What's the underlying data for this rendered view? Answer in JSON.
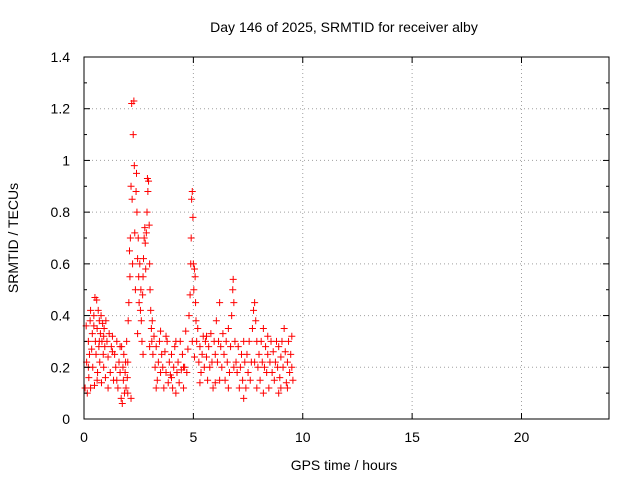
{
  "chart_data": {
    "type": "scatter",
    "title": "Day 146 of 2025, SRMTID for receiver alby",
    "xlabel": "GPS time / hours",
    "ylabel": "SRMTID / TECUs",
    "xlim": [
      0,
      24
    ],
    "ylim": [
      0,
      1.4
    ],
    "x_ticks": [
      0,
      5,
      10,
      15,
      20
    ],
    "x_tick_labels": [
      "0",
      "5",
      "10",
      "15",
      "20"
    ],
    "y_ticks": [
      0,
      0.2,
      0.4,
      0.6,
      0.8,
      1.0,
      1.2,
      1.4
    ],
    "y_tick_labels": [
      "0",
      "0.2",
      "0.4",
      "0.6",
      "0.8",
      "1",
      "1.2",
      "1.4"
    ],
    "grid": true,
    "marker": "+",
    "colors": {
      "series": "#ff0000",
      "grid": "#a0a0a0",
      "axis": "#000000"
    },
    "series": [
      {
        "name": "SRMTID",
        "points": [
          [
            0.05,
            0.12
          ],
          [
            0.1,
            0.36
          ],
          [
            0.12,
            0.22
          ],
          [
            0.15,
            0.1
          ],
          [
            0.2,
            0.3
          ],
          [
            0.22,
            0.16
          ],
          [
            0.25,
            0.25
          ],
          [
            0.28,
            0.38
          ],
          [
            0.3,
            0.12
          ],
          [
            0.35,
            0.27
          ],
          [
            0.38,
            0.33
          ],
          [
            0.4,
            0.2
          ],
          [
            0.45,
            0.36
          ],
          [
            0.48,
            0.13
          ],
          [
            0.5,
            0.47
          ],
          [
            0.52,
            0.3
          ],
          [
            0.55,
            0.25
          ],
          [
            0.58,
            0.46
          ],
          [
            0.6,
            0.35
          ],
          [
            0.62,
            0.18
          ],
          [
            0.65,
            0.42
          ],
          [
            0.68,
            0.28
          ],
          [
            0.7,
            0.38
          ],
          [
            0.72,
            0.22
          ],
          [
            0.75,
            0.33
          ],
          [
            0.78,
            0.4
          ],
          [
            0.8,
            0.14
          ],
          [
            0.82,
            0.3
          ],
          [
            0.85,
            0.37
          ],
          [
            0.88,
            0.25
          ],
          [
            0.9,
            0.2
          ],
          [
            0.92,
            0.35
          ],
          [
            0.95,
            0.28
          ],
          [
            0.98,
            0.16
          ],
          [
            1.0,
            0.38
          ],
          [
            1.05,
            0.3
          ],
          [
            1.1,
            0.24
          ],
          [
            1.15,
            0.33
          ],
          [
            1.2,
            0.18
          ],
          [
            1.25,
            0.28
          ],
          [
            1.3,
            0.32
          ],
          [
            1.35,
            0.15
          ],
          [
            1.4,
            0.25
          ],
          [
            1.45,
            0.2
          ],
          [
            1.5,
            0.3
          ],
          [
            1.55,
            0.12
          ],
          [
            1.6,
            0.22
          ],
          [
            1.65,
            0.18
          ],
          [
            1.7,
            0.08
          ],
          [
            1.72,
            0.28
          ],
          [
            1.75,
            0.06
          ],
          [
            1.78,
            0.2
          ],
          [
            1.8,
            0.15
          ],
          [
            1.82,
            0.25
          ],
          [
            1.85,
            0.1
          ],
          [
            1.88,
            0.18
          ],
          [
            1.9,
            0.22
          ],
          [
            1.92,
            0.12
          ],
          [
            1.95,
            0.3
          ],
          [
            1.98,
            0.16
          ],
          [
            2.0,
            0.22
          ],
          [
            2.02,
            0.38
          ],
          [
            2.05,
            0.45
          ],
          [
            2.08,
            0.65
          ],
          [
            2.1,
            0.55
          ],
          [
            2.12,
            0.7
          ],
          [
            2.15,
            0.9
          ],
          [
            2.18,
            1.22
          ],
          [
            2.2,
            0.85
          ],
          [
            2.22,
            0.6
          ],
          [
            2.25,
            1.1
          ],
          [
            2.28,
            1.23
          ],
          [
            2.3,
            0.98
          ],
          [
            2.32,
            0.72
          ],
          [
            2.35,
            0.5
          ],
          [
            2.38,
            0.88
          ],
          [
            2.4,
            0.95
          ],
          [
            2.42,
            0.8
          ],
          [
            2.45,
            0.62
          ],
          [
            2.48,
            0.7
          ],
          [
            2.5,
            0.55
          ],
          [
            2.52,
            0.45
          ],
          [
            2.55,
            0.6
          ],
          [
            2.58,
            0.42
          ],
          [
            2.6,
            0.5
          ],
          [
            2.62,
            0.38
          ],
          [
            2.65,
            0.3
          ],
          [
            2.68,
            0.48
          ],
          [
            2.7,
            0.55
          ],
          [
            2.72,
            0.62
          ],
          [
            2.75,
            0.7
          ],
          [
            2.78,
            0.74
          ],
          [
            2.8,
            0.68
          ],
          [
            2.82,
            0.58
          ],
          [
            2.85,
            0.72
          ],
          [
            2.88,
            0.8
          ],
          [
            2.9,
            0.93
          ],
          [
            2.92,
            0.88
          ],
          [
            2.95,
            0.92
          ],
          [
            2.98,
            0.75
          ],
          [
            3.0,
            0.6
          ],
          [
            3.02,
            0.5
          ],
          [
            3.05,
            0.42
          ],
          [
            3.08,
            0.35
          ],
          [
            3.1,
            0.3
          ],
          [
            3.12,
            0.38
          ],
          [
            3.15,
            0.25
          ],
          [
            3.2,
            0.32
          ],
          [
            3.25,
            0.2
          ],
          [
            3.3,
            0.28
          ],
          [
            3.35,
            0.15
          ],
          [
            3.4,
            0.22
          ],
          [
            3.45,
            0.3
          ],
          [
            3.5,
            0.18
          ],
          [
            3.55,
            0.25
          ],
          [
            3.6,
            0.2
          ],
          [
            3.65,
            0.12
          ],
          [
            3.7,
            0.26
          ],
          [
            3.75,
            0.18
          ],
          [
            3.8,
            0.3
          ],
          [
            3.85,
            0.14
          ],
          [
            3.9,
            0.22
          ],
          [
            3.95,
            0.17
          ],
          [
            4.0,
            0.25
          ],
          [
            4.05,
            0.12
          ],
          [
            4.1,
            0.2
          ],
          [
            4.15,
            0.28
          ],
          [
            4.2,
            0.1
          ],
          [
            4.25,
            0.18
          ],
          [
            4.3,
            0.22
          ],
          [
            4.35,
            0.14
          ],
          [
            4.4,
            0.3
          ],
          [
            4.45,
            0.19
          ],
          [
            4.5,
            0.25
          ],
          [
            4.55,
            0.12
          ],
          [
            4.6,
            0.2
          ],
          [
            4.65,
            0.34
          ],
          [
            4.7,
            0.18
          ],
          [
            4.75,
            0.27
          ],
          [
            4.8,
            0.4
          ],
          [
            4.85,
            0.48
          ],
          [
            4.88,
            0.6
          ],
          [
            4.9,
            0.7
          ],
          [
            4.92,
            0.85
          ],
          [
            4.95,
            0.88
          ],
          [
            4.98,
            0.78
          ],
          [
            5.0,
            0.6
          ],
          [
            5.02,
            0.5
          ],
          [
            5.05,
            0.58
          ],
          [
            5.08,
            0.55
          ],
          [
            5.1,
            0.45
          ],
          [
            5.12,
            0.38
          ],
          [
            5.15,
            0.3
          ],
          [
            5.2,
            0.35
          ],
          [
            5.25,
            0.22
          ],
          [
            5.3,
            0.28
          ],
          [
            5.35,
            0.18
          ],
          [
            5.4,
            0.25
          ],
          [
            5.45,
            0.32
          ],
          [
            5.5,
            0.2
          ],
          [
            5.55,
            0.3
          ],
          [
            5.6,
            0.24
          ],
          [
            5.65,
            0.15
          ],
          [
            5.7,
            0.28
          ],
          [
            5.75,
            0.2
          ],
          [
            5.8,
            0.33
          ],
          [
            5.85,
            0.22
          ],
          [
            5.9,
            0.12
          ],
          [
            5.95,
            0.3
          ],
          [
            6.0,
            0.25
          ],
          [
            6.05,
            0.38
          ],
          [
            6.1,
            0.22
          ],
          [
            6.15,
            0.3
          ],
          [
            6.2,
            0.45
          ],
          [
            6.25,
            0.28
          ],
          [
            6.3,
            0.2
          ],
          [
            6.35,
            0.33
          ],
          [
            6.4,
            0.25
          ],
          [
            6.45,
            0.15
          ],
          [
            6.5,
            0.3
          ],
          [
            6.55,
            0.22
          ],
          [
            6.6,
            0.35
          ],
          [
            6.65,
            0.18
          ],
          [
            6.7,
            0.28
          ],
          [
            6.75,
            0.4
          ],
          [
            6.8,
            0.5
          ],
          [
            6.82,
            0.54
          ],
          [
            6.85,
            0.45
          ],
          [
            6.9,
            0.3
          ],
          [
            6.95,
            0.22
          ],
          [
            7.0,
            0.18
          ],
          [
            7.05,
            0.28
          ],
          [
            7.1,
            0.12
          ],
          [
            7.15,
            0.2
          ],
          [
            7.2,
            0.25
          ],
          [
            7.25,
            0.15
          ],
          [
            7.3,
            0.3
          ],
          [
            7.35,
            0.22
          ],
          [
            7.4,
            0.12
          ],
          [
            7.45,
            0.25
          ],
          [
            7.5,
            0.18
          ],
          [
            7.55,
            0.3
          ],
          [
            7.6,
            0.15
          ],
          [
            7.65,
            0.22
          ],
          [
            7.7,
            0.35
          ],
          [
            7.75,
            0.42
          ],
          [
            7.8,
            0.45
          ],
          [
            7.85,
            0.38
          ],
          [
            7.9,
            0.3
          ],
          [
            7.95,
            0.2
          ],
          [
            8.0,
            0.25
          ],
          [
            8.05,
            0.15
          ],
          [
            8.1,
            0.3
          ],
          [
            8.15,
            0.22
          ],
          [
            8.2,
            0.1
          ],
          [
            8.25,
            0.2
          ],
          [
            8.3,
            0.28
          ],
          [
            8.35,
            0.18
          ],
          [
            8.4,
            0.25
          ],
          [
            8.45,
            0.12
          ],
          [
            8.5,
            0.22
          ],
          [
            8.55,
            0.3
          ],
          [
            8.6,
            0.18
          ],
          [
            8.65,
            0.26
          ],
          [
            8.7,
            0.15
          ],
          [
            8.75,
            0.22
          ],
          [
            8.8,
            0.3
          ],
          [
            8.85,
            0.2
          ],
          [
            8.9,
            0.28
          ],
          [
            8.95,
            0.16
          ],
          [
            9.0,
            0.24
          ],
          [
            9.05,
            0.3
          ],
          [
            9.1,
            0.2
          ],
          [
            9.15,
            0.35
          ],
          [
            9.2,
            0.26
          ],
          [
            9.25,
            0.14
          ],
          [
            9.3,
            0.22
          ],
          [
            9.35,
            0.3
          ],
          [
            9.4,
            0.18
          ],
          [
            9.45,
            0.25
          ],
          [
            9.5,
            0.2
          ],
          [
            9.55,
            0.15
          ],
          [
            0.3,
            0.42
          ],
          [
            0.45,
            0.4
          ],
          [
            0.7,
            0.3
          ],
          [
            0.9,
            0.32
          ],
          [
            1.3,
            0.26
          ],
          [
            1.5,
            0.15
          ],
          [
            1.65,
            0.28
          ],
          [
            2.0,
            0.1
          ],
          [
            2.15,
            0.08
          ],
          [
            3.3,
            0.12
          ],
          [
            3.75,
            0.32
          ],
          [
            4.2,
            0.3
          ],
          [
            4.55,
            0.2
          ],
          [
            5.3,
            0.14
          ],
          [
            5.6,
            0.32
          ],
          [
            6.2,
            0.15
          ],
          [
            6.6,
            0.12
          ],
          [
            7.3,
            0.08
          ],
          [
            7.9,
            0.12
          ],
          [
            8.4,
            0.32
          ],
          [
            8.9,
            0.1
          ],
          [
            9.3,
            0.12
          ],
          [
            9.5,
            0.32
          ],
          [
            2.45,
            0.33
          ],
          [
            2.7,
            0.25
          ],
          [
            3.0,
            0.28
          ],
          [
            4.95,
            0.3
          ],
          [
            5.05,
            0.24
          ],
          [
            6.85,
            0.2
          ],
          [
            7.8,
            0.22
          ],
          [
            1.1,
            0.12
          ],
          [
            0.2,
            0.2
          ],
          [
            0.6,
            0.15
          ],
          [
            3.5,
            0.34
          ],
          [
            4.0,
            0.16
          ],
          [
            6.0,
            0.14
          ],
          [
            8.2,
            0.35
          ],
          [
            9.0,
            0.12
          ]
        ]
      }
    ]
  }
}
